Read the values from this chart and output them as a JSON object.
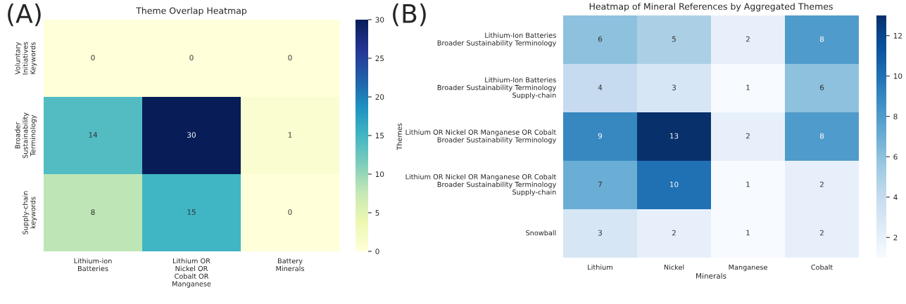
{
  "chart_data": [
    {
      "type": "heatmap",
      "title": "Theme Overlap Heatmap",
      "annotations": [
        "(A)"
      ],
      "categories": [
        "Lithium-ion\nBatteries",
        "Lithium OR\nNickel OR\nCobalt OR\nManganese",
        "Battery\nMinerals"
      ],
      "y_categories": [
        "Voluntary\nInitiatives\nKeywords",
        "Broader\nSustainability\nTerminology",
        "Supply-chain\nkeywords"
      ],
      "cells": [
        [
          0,
          0,
          0
        ],
        [
          14,
          30,
          1
        ],
        [
          8,
          15,
          0
        ]
      ],
      "clim": [
        0,
        30
      ],
      "cticks": [
        0,
        5,
        10,
        15,
        20,
        25,
        30
      ],
      "data_labels": true
    },
    {
      "type": "heatmap",
      "title": "Heatmap of Mineral References by Aggregated Themes",
      "xlabel": "Minerals",
      "ylabel": "Themes",
      "annotations": [
        "(B)"
      ],
      "categories": [
        "Lithium",
        "Nickel",
        "Manganese",
        "Cobalt"
      ],
      "y_categories": [
        "Lithium-Ion Batteries\nBroader Sustainability Terminology",
        "Lithium-Ion Batteries\nBroader Sustainability Terminology\nSupply-chain",
        "Lithium OR Nickel OR Manganese OR Cobalt\nBroader Sustainability Terminology",
        "Lithium OR Nickel OR Manganese OR Cobalt\nBroader Sustainability Terminology\nSupply-chain",
        "Snowball"
      ],
      "cells": [
        [
          6,
          5,
          2,
          8
        ],
        [
          4,
          3,
          1,
          6
        ],
        [
          9,
          13,
          2,
          8
        ],
        [
          7,
          10,
          1,
          2
        ],
        [
          3,
          2,
          1,
          2
        ]
      ],
      "clim": [
        1,
        13
      ],
      "cticks": [
        2,
        4,
        6,
        8,
        10,
        12
      ],
      "data_labels": true
    }
  ]
}
